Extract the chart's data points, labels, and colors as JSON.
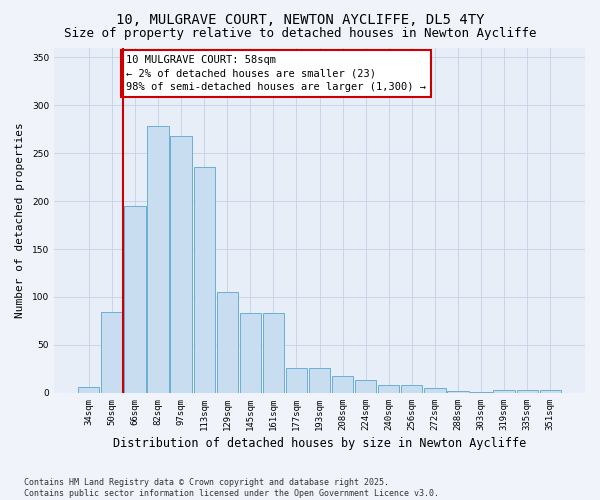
{
  "title_line1": "10, MULGRAVE COURT, NEWTON AYCLIFFE, DL5 4TY",
  "title_line2": "Size of property relative to detached houses in Newton Aycliffe",
  "xlabel": "Distribution of detached houses by size in Newton Aycliffe",
  "ylabel": "Number of detached properties",
  "categories": [
    "34sqm",
    "50sqm",
    "66sqm",
    "82sqm",
    "97sqm",
    "113sqm",
    "129sqm",
    "145sqm",
    "161sqm",
    "177sqm",
    "193sqm",
    "208sqm",
    "224sqm",
    "240sqm",
    "256sqm",
    "272sqm",
    "288sqm",
    "303sqm",
    "319sqm",
    "335sqm",
    "351sqm"
  ],
  "values": [
    6,
    84,
    195,
    278,
    268,
    235,
    105,
    83,
    83,
    26,
    26,
    18,
    14,
    8,
    8,
    5,
    2,
    1,
    3,
    3,
    3
  ],
  "bar_color": "#c9ddf0",
  "bar_edge_color": "#6baed6",
  "vline_x": 1.5,
  "vline_color": "#cc0000",
  "annotation_text": "10 MULGRAVE COURT: 58sqm\n← 2% of detached houses are smaller (23)\n98% of semi-detached houses are larger (1,300) →",
  "annotation_box_color": "#ffffff",
  "annotation_box_edge": "#cc0000",
  "ylim": [
    0,
    360
  ],
  "yticks": [
    0,
    50,
    100,
    150,
    200,
    250,
    300,
    350
  ],
  "grid_color": "#c8d4e8",
  "plot_bg_color": "#e8eef8",
  "fig_bg_color": "#f0f4fa",
  "footer_line1": "Contains HM Land Registry data © Crown copyright and database right 2025.",
  "footer_line2": "Contains public sector information licensed under the Open Government Licence v3.0.",
  "title_fontsize": 10,
  "subtitle_fontsize": 9,
  "xlabel_fontsize": 8.5,
  "ylabel_fontsize": 8,
  "tick_fontsize": 6.5,
  "annotation_fontsize": 7.5,
  "footer_fontsize": 6
}
